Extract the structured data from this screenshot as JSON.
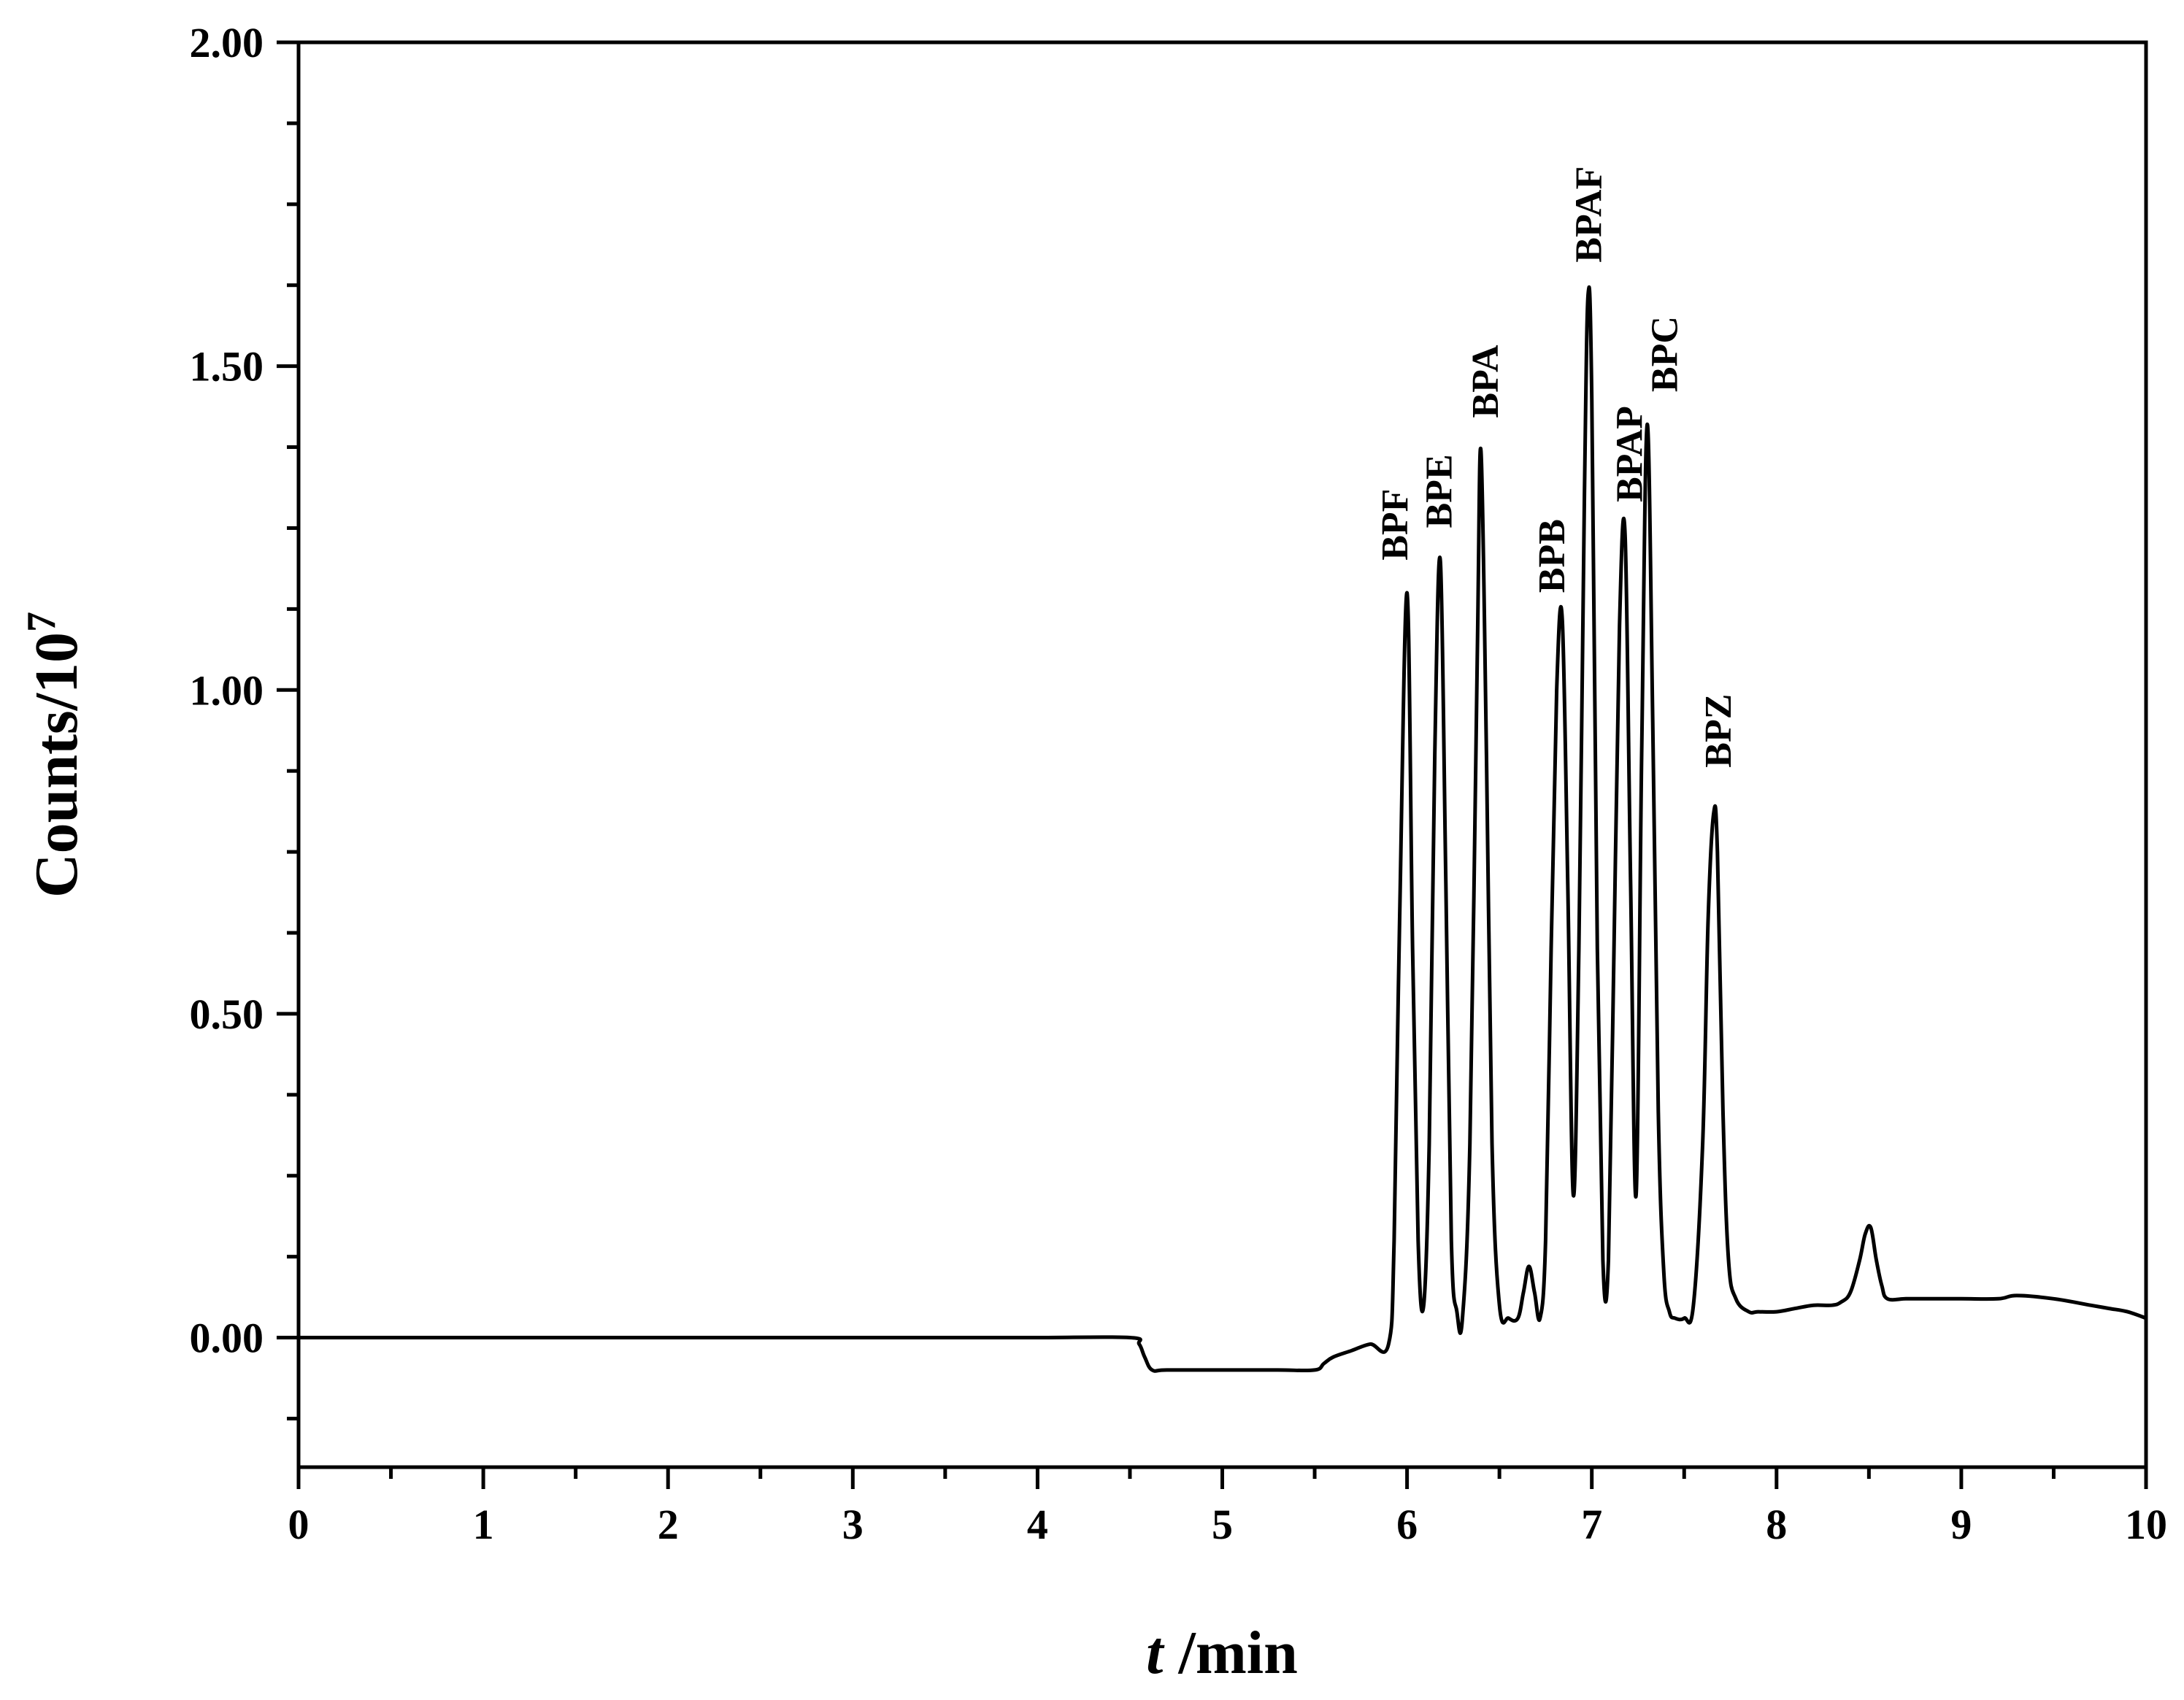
{
  "chart_data": {
    "type": "line",
    "title": "",
    "xlabel": {
      "italic": "t",
      "rest": " /min"
    },
    "ylabel": {
      "base": "Counts/10",
      "sup": "7"
    },
    "xlim": [
      0,
      10
    ],
    "ylim": [
      -0.2,
      2.0
    ],
    "xticks": [
      "0",
      "1",
      "2",
      "3",
      "4",
      "5",
      "6",
      "7",
      "8",
      "9",
      "10"
    ],
    "yticks": [
      "0.00",
      "0.50",
      "1.00",
      "1.50",
      "2.00"
    ],
    "grid": false,
    "legend": "none",
    "line_color": "#000000",
    "series": [
      {
        "x": [
          0,
          0.5,
          1,
          1.5,
          2,
          2.5,
          3,
          3.5,
          4,
          4.5,
          4.55,
          4.58,
          4.62,
          4.7,
          5.0,
          5.3,
          5.5,
          5.55,
          5.6,
          5.7,
          5.8,
          5.9,
          5.93,
          5.96,
          6.0,
          6.03,
          6.06,
          6.09,
          6.12,
          6.15,
          6.18,
          6.21,
          6.24,
          6.27,
          6.3,
          6.34,
          6.38,
          6.4,
          6.43,
          6.46,
          6.5,
          6.55,
          6.6,
          6.63,
          6.66,
          6.69,
          6.72,
          6.75,
          6.78,
          6.81,
          6.84,
          6.87,
          6.9,
          6.93,
          6.96,
          6.98,
          7.0,
          7.03,
          7.06,
          7.09,
          7.12,
          7.15,
          7.18,
          7.21,
          7.24,
          7.27,
          7.3,
          7.33,
          7.36,
          7.39,
          7.42,
          7.45,
          7.5,
          7.55,
          7.6,
          7.63,
          7.66,
          7.68,
          7.71,
          7.74,
          7.78,
          7.85,
          7.9,
          8.0,
          8.1,
          8.2,
          8.3,
          8.35,
          8.4,
          8.45,
          8.48,
          8.51,
          8.54,
          8.57,
          8.6,
          8.7,
          8.8,
          9.0,
          9.2,
          9.3,
          9.5,
          9.7,
          9.8,
          9.9,
          10.0
        ],
        "y": [
          0.0,
          0.0,
          0.0,
          0.0,
          0.0,
          0.0,
          0.0,
          0.0,
          0.0,
          0.0,
          -0.01,
          -0.03,
          -0.05,
          -0.05,
          -0.05,
          -0.05,
          -0.05,
          -0.04,
          -0.03,
          -0.02,
          -0.01,
          -0.01,
          0.15,
          0.65,
          1.15,
          0.6,
          0.15,
          0.05,
          0.3,
          0.9,
          1.2,
          0.7,
          0.15,
          0.04,
          0.03,
          0.3,
          1.05,
          1.37,
          0.9,
          0.3,
          0.05,
          0.03,
          0.03,
          0.07,
          0.11,
          0.07,
          0.03,
          0.15,
          0.6,
          1.0,
          1.11,
          0.7,
          0.22,
          0.6,
          1.3,
          1.61,
          1.45,
          0.6,
          0.12,
          0.12,
          0.6,
          1.1,
          1.24,
          0.7,
          0.22,
          0.9,
          1.41,
          0.95,
          0.35,
          0.1,
          0.04,
          0.03,
          0.03,
          0.05,
          0.3,
          0.65,
          0.81,
          0.75,
          0.35,
          0.12,
          0.06,
          0.04,
          0.04,
          0.04,
          0.045,
          0.05,
          0.05,
          0.055,
          0.07,
          0.12,
          0.16,
          0.17,
          0.12,
          0.08,
          0.06,
          0.06,
          0.06,
          0.06,
          0.06,
          0.065,
          0.06,
          0.05,
          0.045,
          0.04,
          0.03
        ]
      }
    ],
    "annotations": [
      {
        "text": "BPF",
        "x": 5.93,
        "y": 1.2
      },
      {
        "text": "BPE",
        "x": 6.17,
        "y": 1.25
      },
      {
        "text": "BPA",
        "x": 6.42,
        "y": 1.42
      },
      {
        "text": "BPB",
        "x": 6.78,
        "y": 1.15
      },
      {
        "text": "BPAF",
        "x": 6.98,
        "y": 1.66
      },
      {
        "text": "BPAP",
        "x": 7.2,
        "y": 1.29
      },
      {
        "text": "BPC",
        "x": 7.39,
        "y": 1.46
      },
      {
        "text": "BPZ",
        "x": 7.68,
        "y": 0.88
      }
    ]
  }
}
